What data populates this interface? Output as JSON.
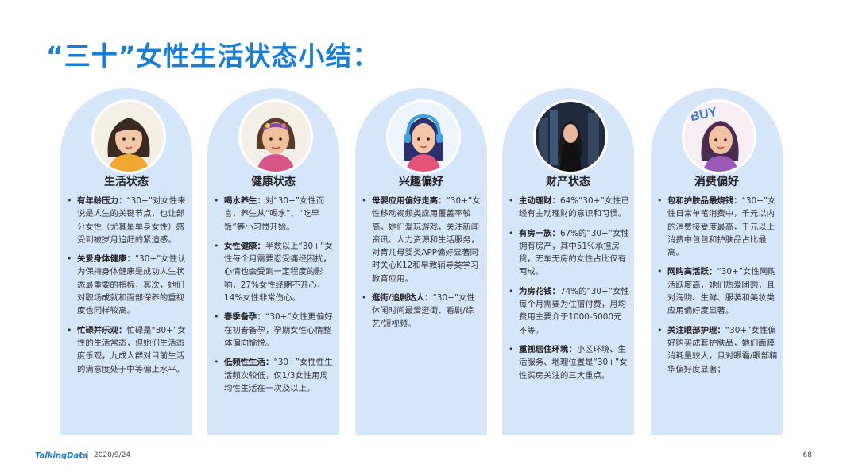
{
  "title": "“三十”女性生活状态小结：",
  "cards": [
    {
      "title": "生活状态",
      "items": [
        {
          "label": "有年龄压力：",
          "text": "“30+”对女性来说是人生的关键节点，也让部分女性（尤其是单身女性）感受到被岁月追赶的紧迫感。"
        },
        {
          "label": "关爱身体健康：",
          "text": "“30+”女性认为保持身体健康是成功人生状态最重要的指标，其次，她们对职场成就和面部保养的重视度也同样较高。"
        },
        {
          "label": "忙碌并乐观：",
          "text": "忙碌是“30+”女性的生活常态，但她们生活态度乐观，九成人群对目前生活的满意度处于中等偏上水平。"
        }
      ]
    },
    {
      "title": "健康状态",
      "items": [
        {
          "label": "喝水养生：",
          "text": "对“30+”女性而言，养生从“喝水”、“吃早饭”等小习惯开始。"
        },
        {
          "label": "女性健康：",
          "text": "半数以上“30+”女性每个月需要忍受痛经困扰，心情也会受到一定程度的影响，27%女性经期不开心，14%女性非常伤心。"
        },
        {
          "label": "春季备孕：",
          "text": "“30+”女性更偏好在初春备孕，孕期女性心情整体偏向愉悦。"
        },
        {
          "label": "低频性生活：",
          "text": "“30+”女性性生活频次较低，仅1/3女性用周均性生活在一次及以上。"
        }
      ]
    },
    {
      "title": "兴趣偏好",
      "items": [
        {
          "label": "母婴应用偏好走高：",
          "text": "“30+”女性移动视频类应用覆盖率较高，她们爱玩游戏，关注新闻资讯、人力资源和生活服务，对育儿母婴类APP偏好显著同时关心K12和早教辅导类学习教育应用。"
        },
        {
          "label": "逛街/追剧达人：",
          "text": "“30+”女性休闲时间最爱逛街、看剧/综艺/短视频。"
        }
      ]
    },
    {
      "title": "财产状态",
      "items": [
        {
          "label": "主动理财：",
          "text": "64%“30+”女性已经有主动理财的意识和习惯。"
        },
        {
          "label": "有房一族：",
          "text": "67%的“30+”女性拥有房产，其中51%承担房贷，无车无房的女性占比仅有两成。"
        },
        {
          "label": "为房花钱：",
          "text": "74%的“30+”女性每个月需要为住宿付费，月均费用主要介于1000-5000元不等。"
        },
        {
          "label": "重视居住环境：",
          "text": "小区环境、生活服务、地理位置是“30+”女性买房关注的三大重点。"
        }
      ]
    },
    {
      "title": "消费偏好",
      "items": [
        {
          "label": "包和护肤品最烧钱：",
          "text": "“30+”女性日常单笔消费中，千元以内的消费接受度最高，千元以上消费中包包和护肤品占比最高。"
        },
        {
          "label": "网购高活跃：",
          "text": "“30+”女性网购活跃度高，她们热爱团购，且对海购、生鲜、服装和美妆类应用偏好度显著。"
        },
        {
          "label": "关注眼部护理：",
          "text": "“30+”女性偏好购买成套护肤品，她们面膜消耗量较大，且对眼霜/眼部精华偏好度显著；"
        }
      ]
    }
  ],
  "avatar_badge": "BUY",
  "footer": {
    "logo": "TalkingData",
    "date": "2020/9/24",
    "page": "68"
  },
  "colors": {
    "accent": "#1a7fd4",
    "card_bg": "#d6e6fa"
  }
}
